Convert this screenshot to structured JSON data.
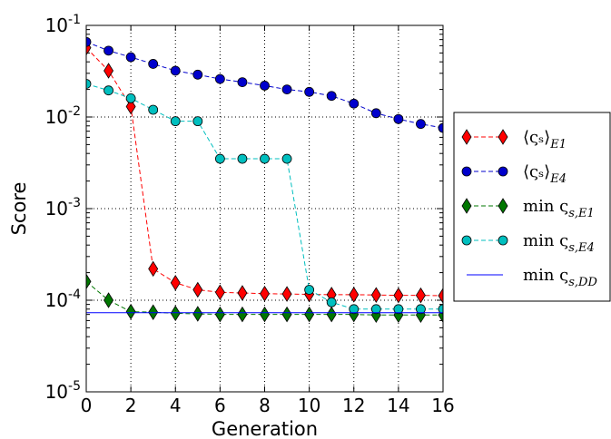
{
  "chart_data": {
    "type": "line",
    "xlabel": "Generation",
    "ylabel": "Score",
    "xlim": [
      0,
      16
    ],
    "ylim": [
      1e-05,
      0.1
    ],
    "yscale": "log",
    "grid": true,
    "legend_position": "outside-right",
    "x_ticks": [
      "0",
      "2",
      "4",
      "6",
      "8",
      "10",
      "12",
      "14",
      "16"
    ],
    "y_ticks": [
      {
        "base": "10",
        "exp": "-5",
        "value": 1e-05
      },
      {
        "base": "10",
        "exp": "-4",
        "value": 0.0001
      },
      {
        "base": "10",
        "exp": "-3",
        "value": 0.001
      },
      {
        "base": "10",
        "exp": "-2",
        "value": 0.01
      },
      {
        "base": "10",
        "exp": "-1",
        "value": 0.1
      }
    ],
    "series": [
      {
        "name": "⟨ς_s⟩_E1",
        "legend": {
          "main": "⟨ςₛ⟩",
          "sub": "E1"
        },
        "color": "#ff0000",
        "marker": "diamond",
        "linestyle": "dashed",
        "x": [
          0,
          1,
          2,
          3,
          4,
          5,
          6,
          7,
          8,
          9,
          10,
          11,
          12,
          13,
          14,
          15,
          16
        ],
        "y": [
          0.057,
          0.032,
          0.013,
          0.00022,
          0.000155,
          0.00013,
          0.000122,
          0.00012,
          0.000118,
          0.000117,
          0.000116,
          0.000115,
          0.000115,
          0.000114,
          0.000113,
          0.000113,
          0.000112
        ]
      },
      {
        "name": "⟨ς_s⟩_E4",
        "legend": {
          "main": "⟨ςₛ⟩",
          "sub": "E4"
        },
        "color": "#0000cc",
        "marker": "circle",
        "linestyle": "dashed",
        "x": [
          0,
          1,
          2,
          3,
          4,
          5,
          6,
          7,
          8,
          9,
          10,
          11,
          12,
          13,
          14,
          15,
          16
        ],
        "y": [
          0.066,
          0.053,
          0.045,
          0.038,
          0.032,
          0.029,
          0.026,
          0.024,
          0.022,
          0.02,
          0.0188,
          0.017,
          0.014,
          0.011,
          0.0095,
          0.0084,
          0.0076
        ]
      },
      {
        "name": "min ς_s,E1",
        "legend": {
          "main": "min ς",
          "sub": "s,E1"
        },
        "color": "#007700",
        "marker": "diamond",
        "linestyle": "dashed",
        "x": [
          0,
          1,
          2,
          3,
          4,
          5,
          6,
          7,
          8,
          9,
          10,
          11,
          12,
          13,
          14,
          15,
          16
        ],
        "y": [
          0.00016,
          0.0001,
          7.5e-05,
          7.4e-05,
          7.2e-05,
          7.1e-05,
          7e-05,
          7e-05,
          7e-05,
          7e-05,
          7e-05,
          7e-05,
          7e-05,
          6.9e-05,
          6.9e-05,
          6.9e-05,
          6.9e-05
        ]
      },
      {
        "name": "min ς_s,E4",
        "legend": {
          "main": "min ς",
          "sub": "s,E4"
        },
        "color": "#00bfbf",
        "marker": "circle",
        "linestyle": "dashed",
        "x": [
          0,
          1,
          2,
          3,
          4,
          5,
          6,
          7,
          8,
          9,
          10,
          11,
          12,
          13,
          14,
          15,
          16
        ],
        "y": [
          0.023,
          0.0195,
          0.016,
          0.012,
          0.009,
          0.009,
          0.0035,
          0.0035,
          0.0035,
          0.0035,
          0.00013,
          9.5e-05,
          8e-05,
          8e-05,
          8e-05,
          8e-05,
          8e-05
        ]
      },
      {
        "name": "min ς_s,DD",
        "legend": {
          "main": "min ς",
          "sub": "s,DD"
        },
        "color": "#0000ff",
        "marker": "none",
        "linestyle": "solid",
        "x": [
          0,
          16
        ],
        "y": [
          7.3e-05,
          7.3e-05
        ]
      }
    ]
  }
}
